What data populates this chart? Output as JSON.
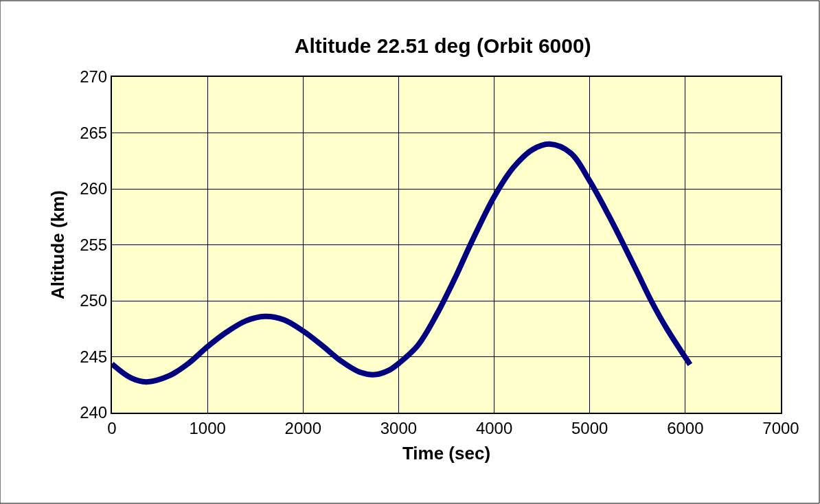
{
  "chart_data": {
    "type": "line",
    "title": "Altitude 22.51 deg (Orbit 6000)",
    "xlabel": "Time (sec)",
    "ylabel": "Altitude (km)",
    "xlim": [
      0,
      7000
    ],
    "xticks": [
      0,
      1000,
      2000,
      3000,
      4000,
      5000,
      6000,
      7000
    ],
    "ylim": [
      240,
      270
    ],
    "yticks": [
      240,
      245,
      250,
      255,
      260,
      265,
      270
    ],
    "grid": true,
    "marker": "none",
    "line_style": "solid",
    "series": [
      {
        "color": "#000080",
        "x": [
          0,
          200,
          360,
          600,
          800,
          1000,
          1200,
          1400,
          1600,
          1800,
          2000,
          2200,
          2400,
          2600,
          2750,
          2900,
          3000,
          3200,
          3400,
          3600,
          3750,
          4000,
          4200,
          4400,
          4580,
          4800,
          5000,
          5200,
          5355,
          5500,
          5643,
          5800,
          6050
        ],
        "values": [
          244.35,
          243.1,
          242.75,
          243.3,
          244.4,
          245.9,
          247.2,
          248.2,
          248.6,
          248.3,
          247.3,
          246.0,
          244.6,
          243.6,
          243.4,
          243.8,
          244.4,
          246.0,
          248.8,
          252.2,
          255.0,
          259.3,
          261.9,
          263.5,
          264.0,
          263.2,
          260.7,
          257.6,
          255.0,
          252.5,
          250.0,
          247.6,
          244.3
        ]
      }
    ]
  }
}
